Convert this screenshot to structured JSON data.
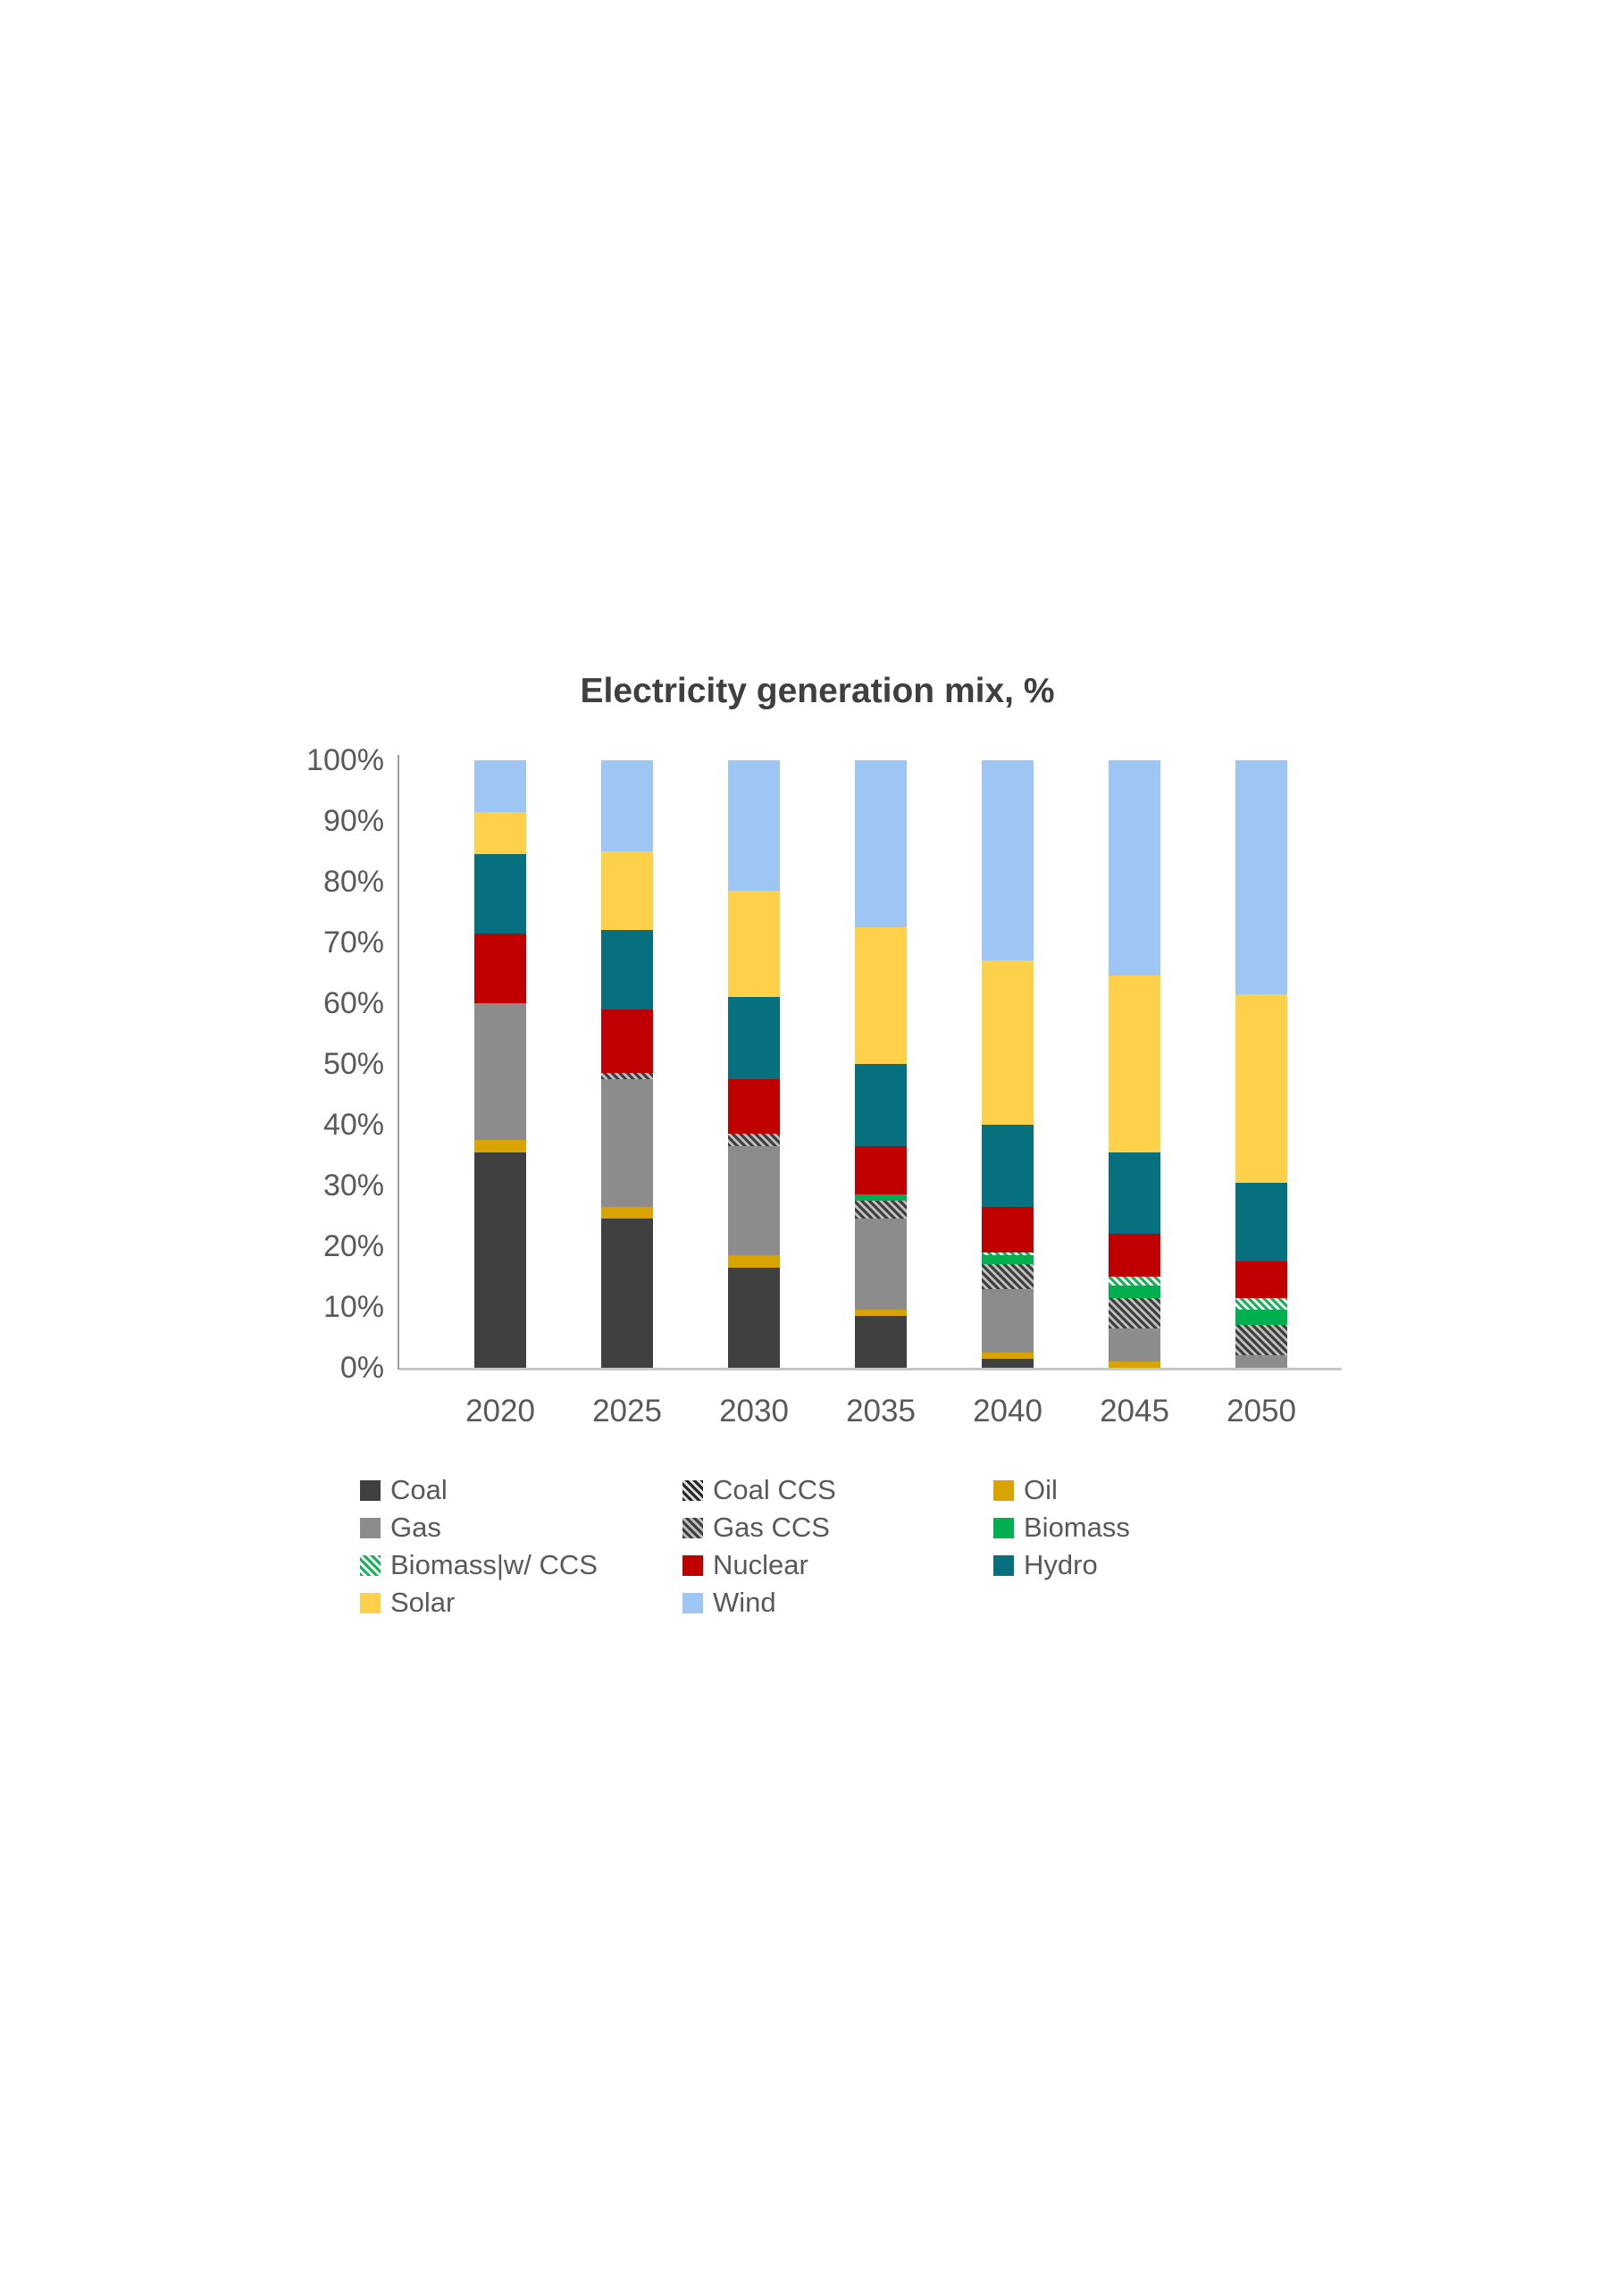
{
  "title": "Electricity generation mix, %",
  "chart_data": {
    "type": "bar",
    "subtype": "stacked-100-percent",
    "title": "Electricity generation mix, %",
    "categories": [
      "2020",
      "2025",
      "2030",
      "2035",
      "2040",
      "2045",
      "2050"
    ],
    "unit": "%",
    "ylim": [
      0,
      100
    ],
    "yticks": [
      "0%",
      "10%",
      "20%",
      "30%",
      "40%",
      "50%",
      "60%",
      "70%",
      "80%",
      "90%",
      "100%"
    ],
    "grid": false,
    "legend_position": "bottom",
    "series": [
      {
        "name": "Coal",
        "color": "#404040",
        "pattern": "solid",
        "values": [
          35.5,
          24.5,
          16.5,
          8.5,
          1.5,
          0,
          0
        ]
      },
      {
        "name": "Coal CCS",
        "color": "#404040",
        "pattern": "hatch-coal",
        "values": [
          0,
          0,
          0,
          0,
          0,
          0,
          0
        ]
      },
      {
        "name": "Oil",
        "color": "#d9a400",
        "pattern": "solid",
        "values": [
          2,
          2,
          2,
          1,
          1,
          1,
          0
        ]
      },
      {
        "name": "Gas",
        "color": "#8c8c8c",
        "pattern": "solid",
        "values": [
          22.5,
          21,
          18,
          15,
          10.5,
          5.5,
          2
        ]
      },
      {
        "name": "Gas CCS",
        "color": "#8c8c8c",
        "pattern": "hatch-gas",
        "values": [
          0,
          1,
          2,
          3,
          4,
          5,
          5
        ]
      },
      {
        "name": "Biomass",
        "color": "#00b050",
        "pattern": "solid",
        "values": [
          0,
          0,
          0,
          1,
          1.5,
          2,
          2.5
        ]
      },
      {
        "name": "Biomass|w/ CCS",
        "color": "#00b050",
        "pattern": "hatch-bio",
        "values": [
          0,
          0,
          0,
          0,
          0.5,
          1.5,
          2
        ]
      },
      {
        "name": "Nuclear",
        "color": "#c00000",
        "pattern": "solid",
        "values": [
          11.5,
          10.5,
          9,
          8,
          7.5,
          7,
          6
        ]
      },
      {
        "name": "Hydro",
        "color": "#07707f",
        "pattern": "solid",
        "values": [
          13,
          13,
          13.5,
          13.5,
          13.5,
          13.5,
          13
        ]
      },
      {
        "name": "Solar",
        "color": "#ffd04a",
        "pattern": "solid",
        "values": [
          7,
          13,
          17.5,
          22.5,
          27,
          29,
          31
        ]
      },
      {
        "name": "Wind",
        "color": "#9dc6f5",
        "pattern": "solid",
        "values": [
          8.5,
          15,
          21.5,
          27.5,
          33,
          35.5,
          38.5
        ]
      }
    ]
  },
  "colors": {
    "title_text": "#3f3f3f",
    "axis_text": "#595959",
    "axis_line": "#9e9e9e",
    "baseline": "#c6c6c6",
    "background": "#ffffff"
  }
}
